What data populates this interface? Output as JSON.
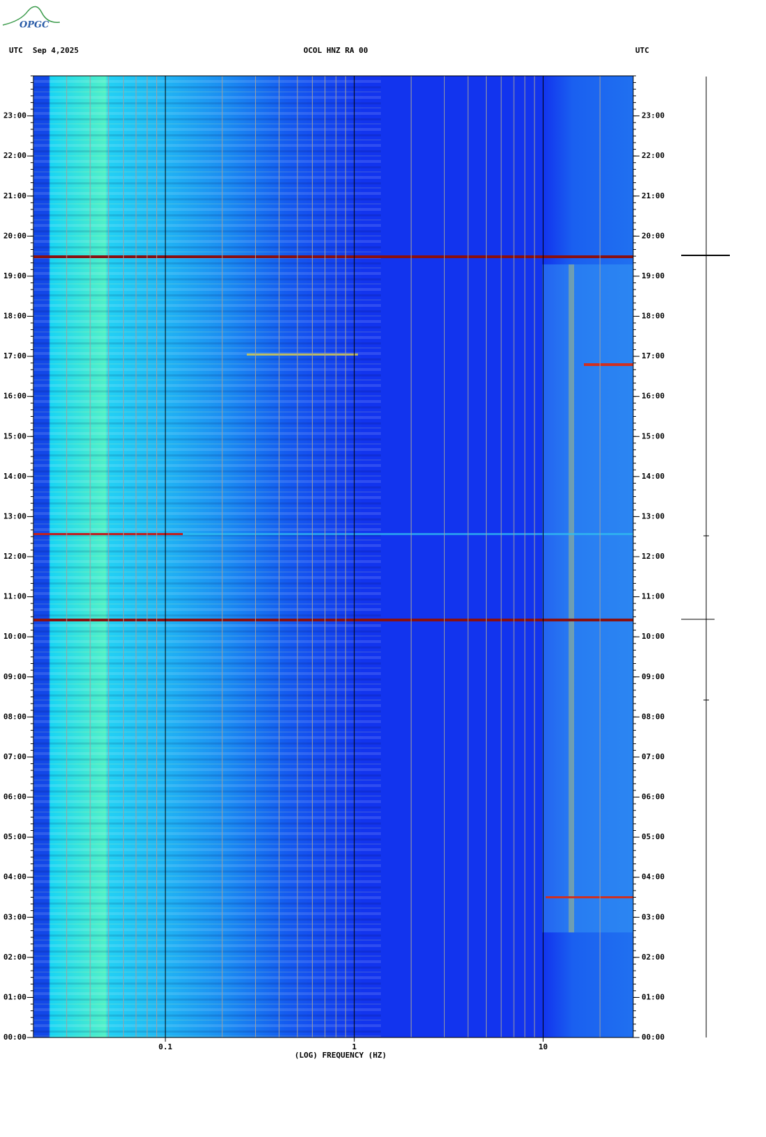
{
  "logo": "OPGC",
  "chart_data": {
    "type": "spectrogram",
    "left_label": "UTC",
    "date": "Sep 4,2025",
    "title": "OCOL HNZ RA 00",
    "right_label": "UTC",
    "xlabel": "(LOG) FREQUENCY (HZ)",
    "xscale": "log",
    "xlim": [
      0.02,
      30
    ],
    "xticks": [
      0.1,
      1,
      10
    ],
    "ylim": [
      0,
      24
    ],
    "yticks": [
      {
        "value": 0,
        "label": "00:00"
      },
      {
        "value": 1,
        "label": "01:00"
      },
      {
        "value": 2,
        "label": "02:00"
      },
      {
        "value": 3,
        "label": "03:00"
      },
      {
        "value": 4,
        "label": "04:00"
      },
      {
        "value": 5,
        "label": "05:00"
      },
      {
        "value": 6,
        "label": "06:00"
      },
      {
        "value": 7,
        "label": "07:00"
      },
      {
        "value": 8,
        "label": "08:00"
      },
      {
        "value": 9,
        "label": "09:00"
      },
      {
        "value": 10,
        "label": "10:00"
      },
      {
        "value": 11,
        "label": "11:00"
      },
      {
        "value": 12,
        "label": "12:00"
      },
      {
        "value": 13,
        "label": "13:00"
      },
      {
        "value": 14,
        "label": "14:00"
      },
      {
        "value": 15,
        "label": "15:00"
      },
      {
        "value": 16,
        "label": "16:00"
      },
      {
        "value": 17,
        "label": "17:00"
      },
      {
        "value": 18,
        "label": "18:00"
      },
      {
        "value": 19,
        "label": "19:00"
      },
      {
        "value": 20,
        "label": "20:00"
      },
      {
        "value": 21,
        "label": "21:00"
      },
      {
        "value": 22,
        "label": "22:00"
      },
      {
        "value": 23,
        "label": "23:00"
      }
    ]
  }
}
